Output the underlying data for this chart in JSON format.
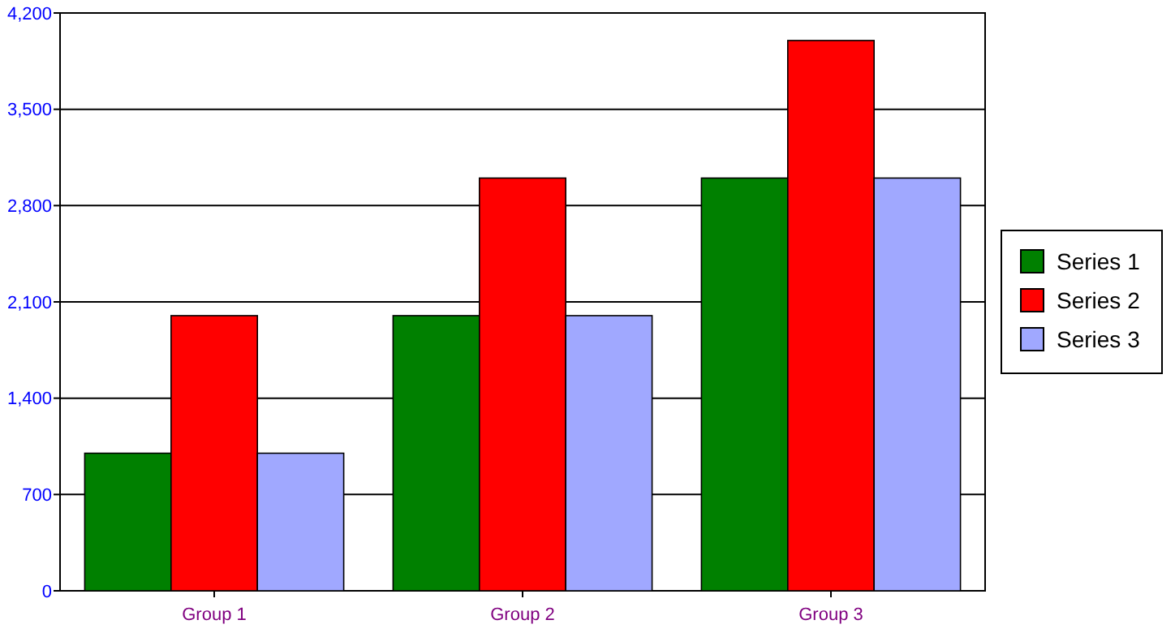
{
  "chart_data": {
    "type": "bar",
    "categories": [
      "Group 1",
      "Group 2",
      "Group 3"
    ],
    "series": [
      {
        "name": "Series 1",
        "color": "#008000",
        "values": [
          1000,
          2000,
          3000
        ]
      },
      {
        "name": "Series 2",
        "color": "#ff0000",
        "values": [
          2000,
          3000,
          4000
        ]
      },
      {
        "name": "Series 3",
        "color": "#a0a8ff",
        "values": [
          1000,
          2000,
          3000
        ]
      }
    ],
    "ylim": [
      0,
      4200
    ],
    "yticks": [
      {
        "value": 0,
        "label": "0"
      },
      {
        "value": 700,
        "label": "700"
      },
      {
        "value": 1400,
        "label": "1,400"
      },
      {
        "value": 2100,
        "label": "2,100"
      },
      {
        "value": 2800,
        "label": "2,800"
      },
      {
        "value": 3500,
        "label": "3,500"
      },
      {
        "value": 4200,
        "label": "4,200"
      }
    ],
    "grid": "y",
    "legend": "right"
  }
}
